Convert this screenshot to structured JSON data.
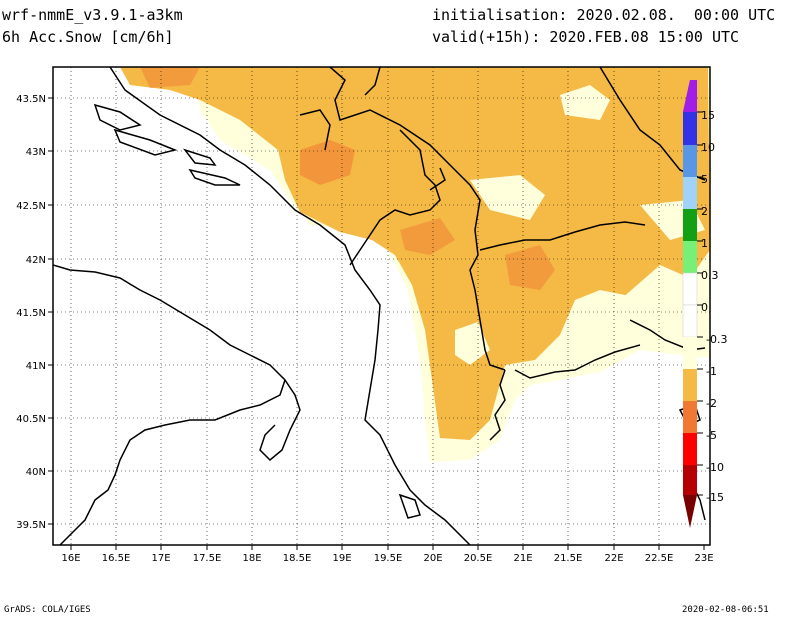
{
  "header": {
    "model": "wrf-nmmE_v3.9.1-a3km",
    "field": "6h Acc.Snow [cm/6h]",
    "init": "initialisation: 2020.02.08.  00:00 UTC",
    "valid": "valid(+15h): 2020.FEB.08 15:00 UTC"
  },
  "footer": {
    "left": "GrADS: COLA/IGES",
    "right": "2020-02-08-06:51"
  },
  "map": {
    "lon_labels": [
      "16E",
      "16.5E",
      "17E",
      "17.5E",
      "18E",
      "18.5E",
      "19E",
      "19.5E",
      "20E",
      "20.5E",
      "21E",
      "21.5E",
      "22E",
      "22.5E",
      "23E"
    ],
    "lat_labels": [
      "43.5N",
      "43N",
      "42.5N",
      "42N",
      "41.5N",
      "41N",
      "40.5N",
      "40N",
      "39.5N"
    ]
  },
  "legend": {
    "labels": [
      "15",
      "10",
      "5",
      "2",
      "1",
      "0.3",
      "0",
      "-0.3",
      "-1",
      "-2",
      "-5",
      "-10",
      "-15"
    ],
    "colors": [
      "#a01ee6",
      "#3232e6",
      "#5a96e6",
      "#a0d2fa",
      "#14a014",
      "#78f078",
      "#ffffff",
      "#ffffff",
      "#ffffdc",
      "#f5b946",
      "#f07832",
      "#ff0000",
      "#b40000",
      "#780000"
    ]
  }
}
